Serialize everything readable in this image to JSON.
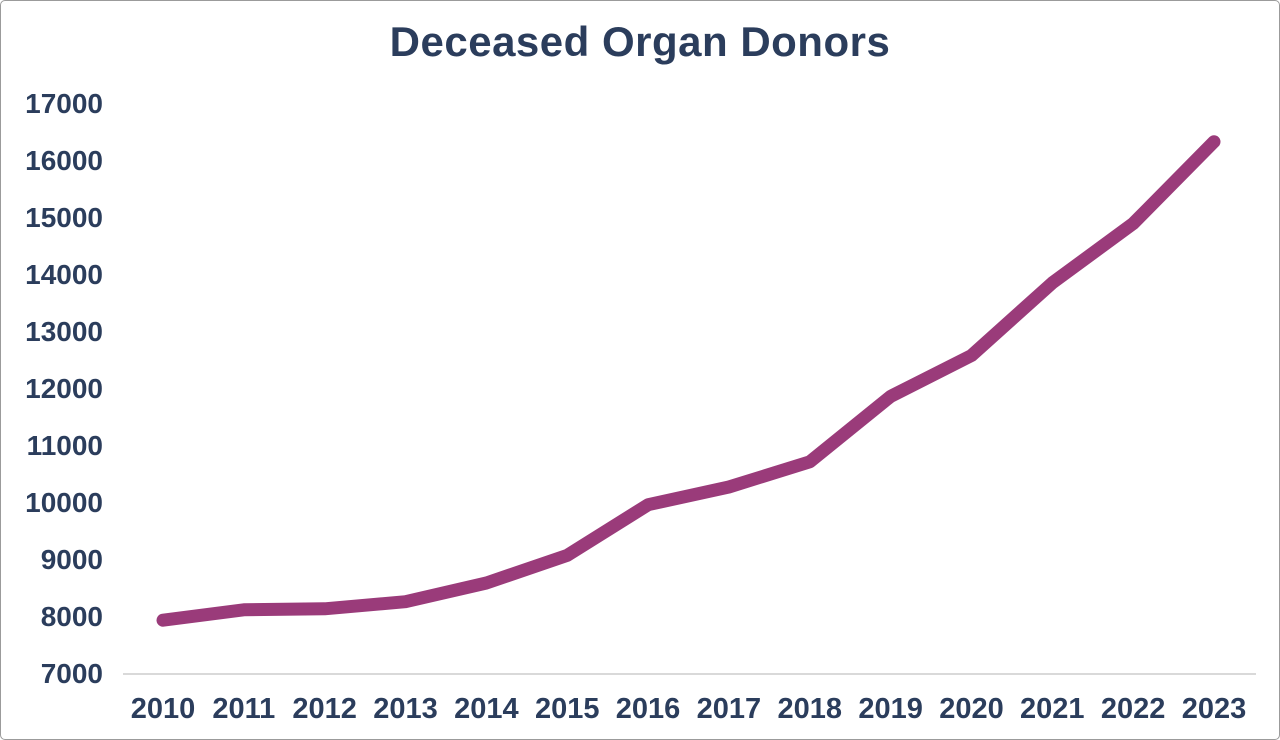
{
  "chart_data": {
    "type": "line",
    "title": "Deceased Organ Donors",
    "categories": [
      "2010",
      "2011",
      "2012",
      "2013",
      "2014",
      "2015",
      "2016",
      "2017",
      "2018",
      "2019",
      "2020",
      "2021",
      "2022",
      "2023"
    ],
    "series": [
      {
        "name": "Deceased organ donors",
        "values": [
          7943,
          8126,
          8143,
          8269,
          8596,
          9080,
          9971,
          10281,
          10722,
          11870,
          12588,
          13861,
          14903,
          16338
        ]
      }
    ],
    "xlabel": "",
    "ylabel": "",
    "ylim": [
      7000,
      17000
    ],
    "y_ticks": [
      7000,
      8000,
      9000,
      10000,
      11000,
      12000,
      13000,
      14000,
      15000,
      16000,
      17000
    ],
    "grid": false,
    "legend_position": "none",
    "line_color": "#9a3b7a",
    "text_color": "#2b3d5c",
    "axis_line_color": "#d9d9d9",
    "background_color": "#ffffff"
  }
}
